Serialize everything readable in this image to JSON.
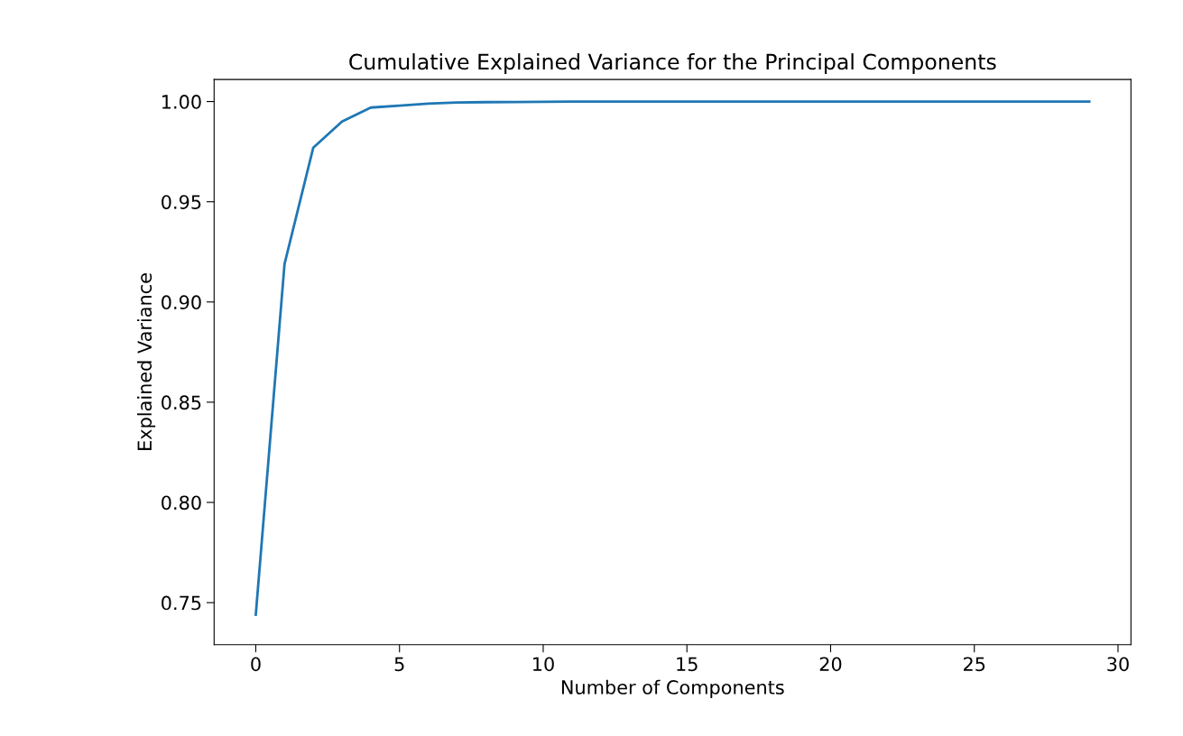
{
  "chart_data": {
    "type": "line",
    "title": "Cumulative Explained Variance for the Principal Components",
    "xlabel": "Number of Components",
    "ylabel": "Explained Variance",
    "x": [
      0,
      1,
      2,
      3,
      4,
      5,
      6,
      7,
      8,
      9,
      10,
      11,
      12,
      13,
      14,
      15,
      16,
      17,
      18,
      19,
      20,
      21,
      22,
      23,
      24,
      25,
      26,
      27,
      28,
      29
    ],
    "series": [
      {
        "color": "#1f77b4",
        "values": [
          0.744,
          0.919,
          0.977,
          0.99,
          0.997,
          0.998,
          0.999,
          0.9995,
          0.9997,
          0.9998,
          0.9999,
          1.0,
          1.0,
          1.0,
          1.0,
          1.0,
          1.0,
          1.0,
          1.0,
          1.0,
          1.0,
          1.0,
          1.0,
          1.0,
          1.0,
          1.0,
          1.0,
          1.0,
          1.0,
          1.0
        ]
      }
    ],
    "xlim": [
      -1.45,
      30.45
    ],
    "xticks": [
      0,
      5,
      10,
      15,
      20,
      25,
      30
    ],
    "ylim": [
      0.729,
      1.011
    ],
    "yticks": [
      {
        "value": 0.75,
        "label": "0.75"
      },
      {
        "value": 0.8,
        "label": "0.80"
      },
      {
        "value": 0.85,
        "label": "0.85"
      },
      {
        "value": 0.9,
        "label": "0.90"
      },
      {
        "value": 0.95,
        "label": "0.95"
      },
      {
        "value": 1.0,
        "label": "1.00"
      }
    ]
  }
}
